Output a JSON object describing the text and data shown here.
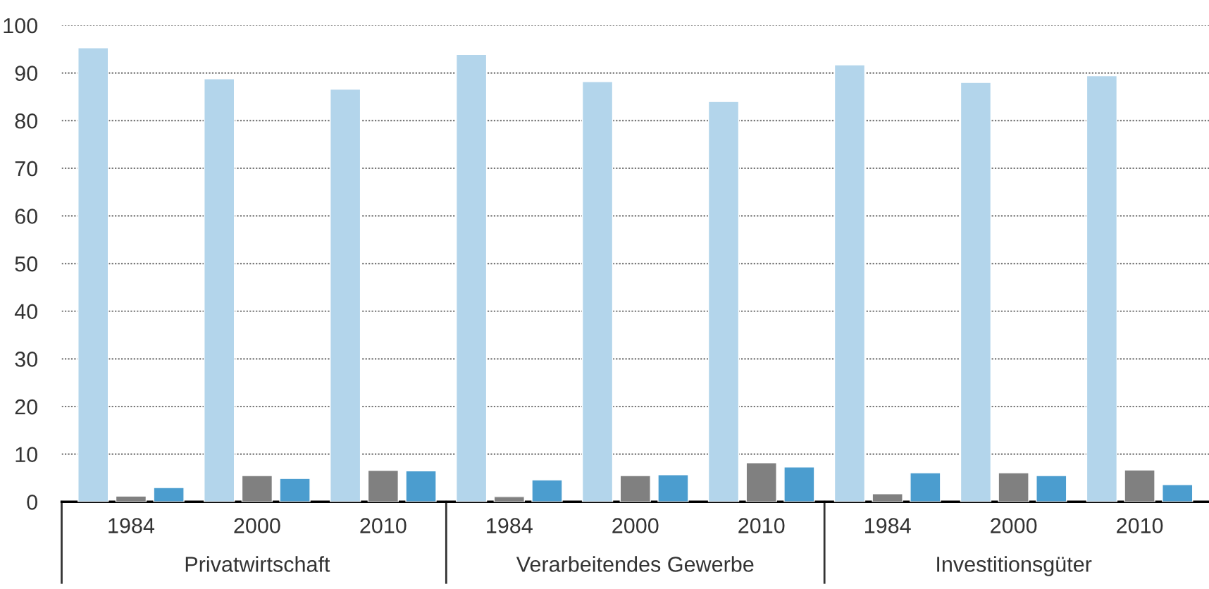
{
  "chart_data": {
    "type": "bar",
    "categories": [
      "1984",
      "2000",
      "2010",
      "1984",
      "2000",
      "2010",
      "1984",
      "2000",
      "2010"
    ],
    "series": [
      {
        "color": "#b3d5eb",
        "values": [
          95.3,
          88.8,
          86.6,
          93.9,
          88.2,
          84.0,
          91.7,
          88.0,
          89.4
        ]
      },
      {
        "color": "#808080",
        "values": [
          1.2,
          5.5,
          6.6,
          1.1,
          5.5,
          8.2,
          1.7,
          6.1,
          6.7
        ]
      },
      {
        "color": "#4b9dcf",
        "values": [
          3.0,
          4.9,
          6.5,
          4.6,
          5.7,
          7.3,
          6.1,
          5.5,
          3.6
        ]
      }
    ],
    "annotations": [
      "Privatwirtschaft",
      "Verarbeitendes Gewerbe",
      "Investitionsgüter"
    ],
    "ylim": [
      0,
      100
    ],
    "yticks": [
      0,
      10,
      20,
      30,
      40,
      50,
      60,
      70,
      80,
      90,
      100
    ],
    "grid": "y",
    "legend": false
  }
}
